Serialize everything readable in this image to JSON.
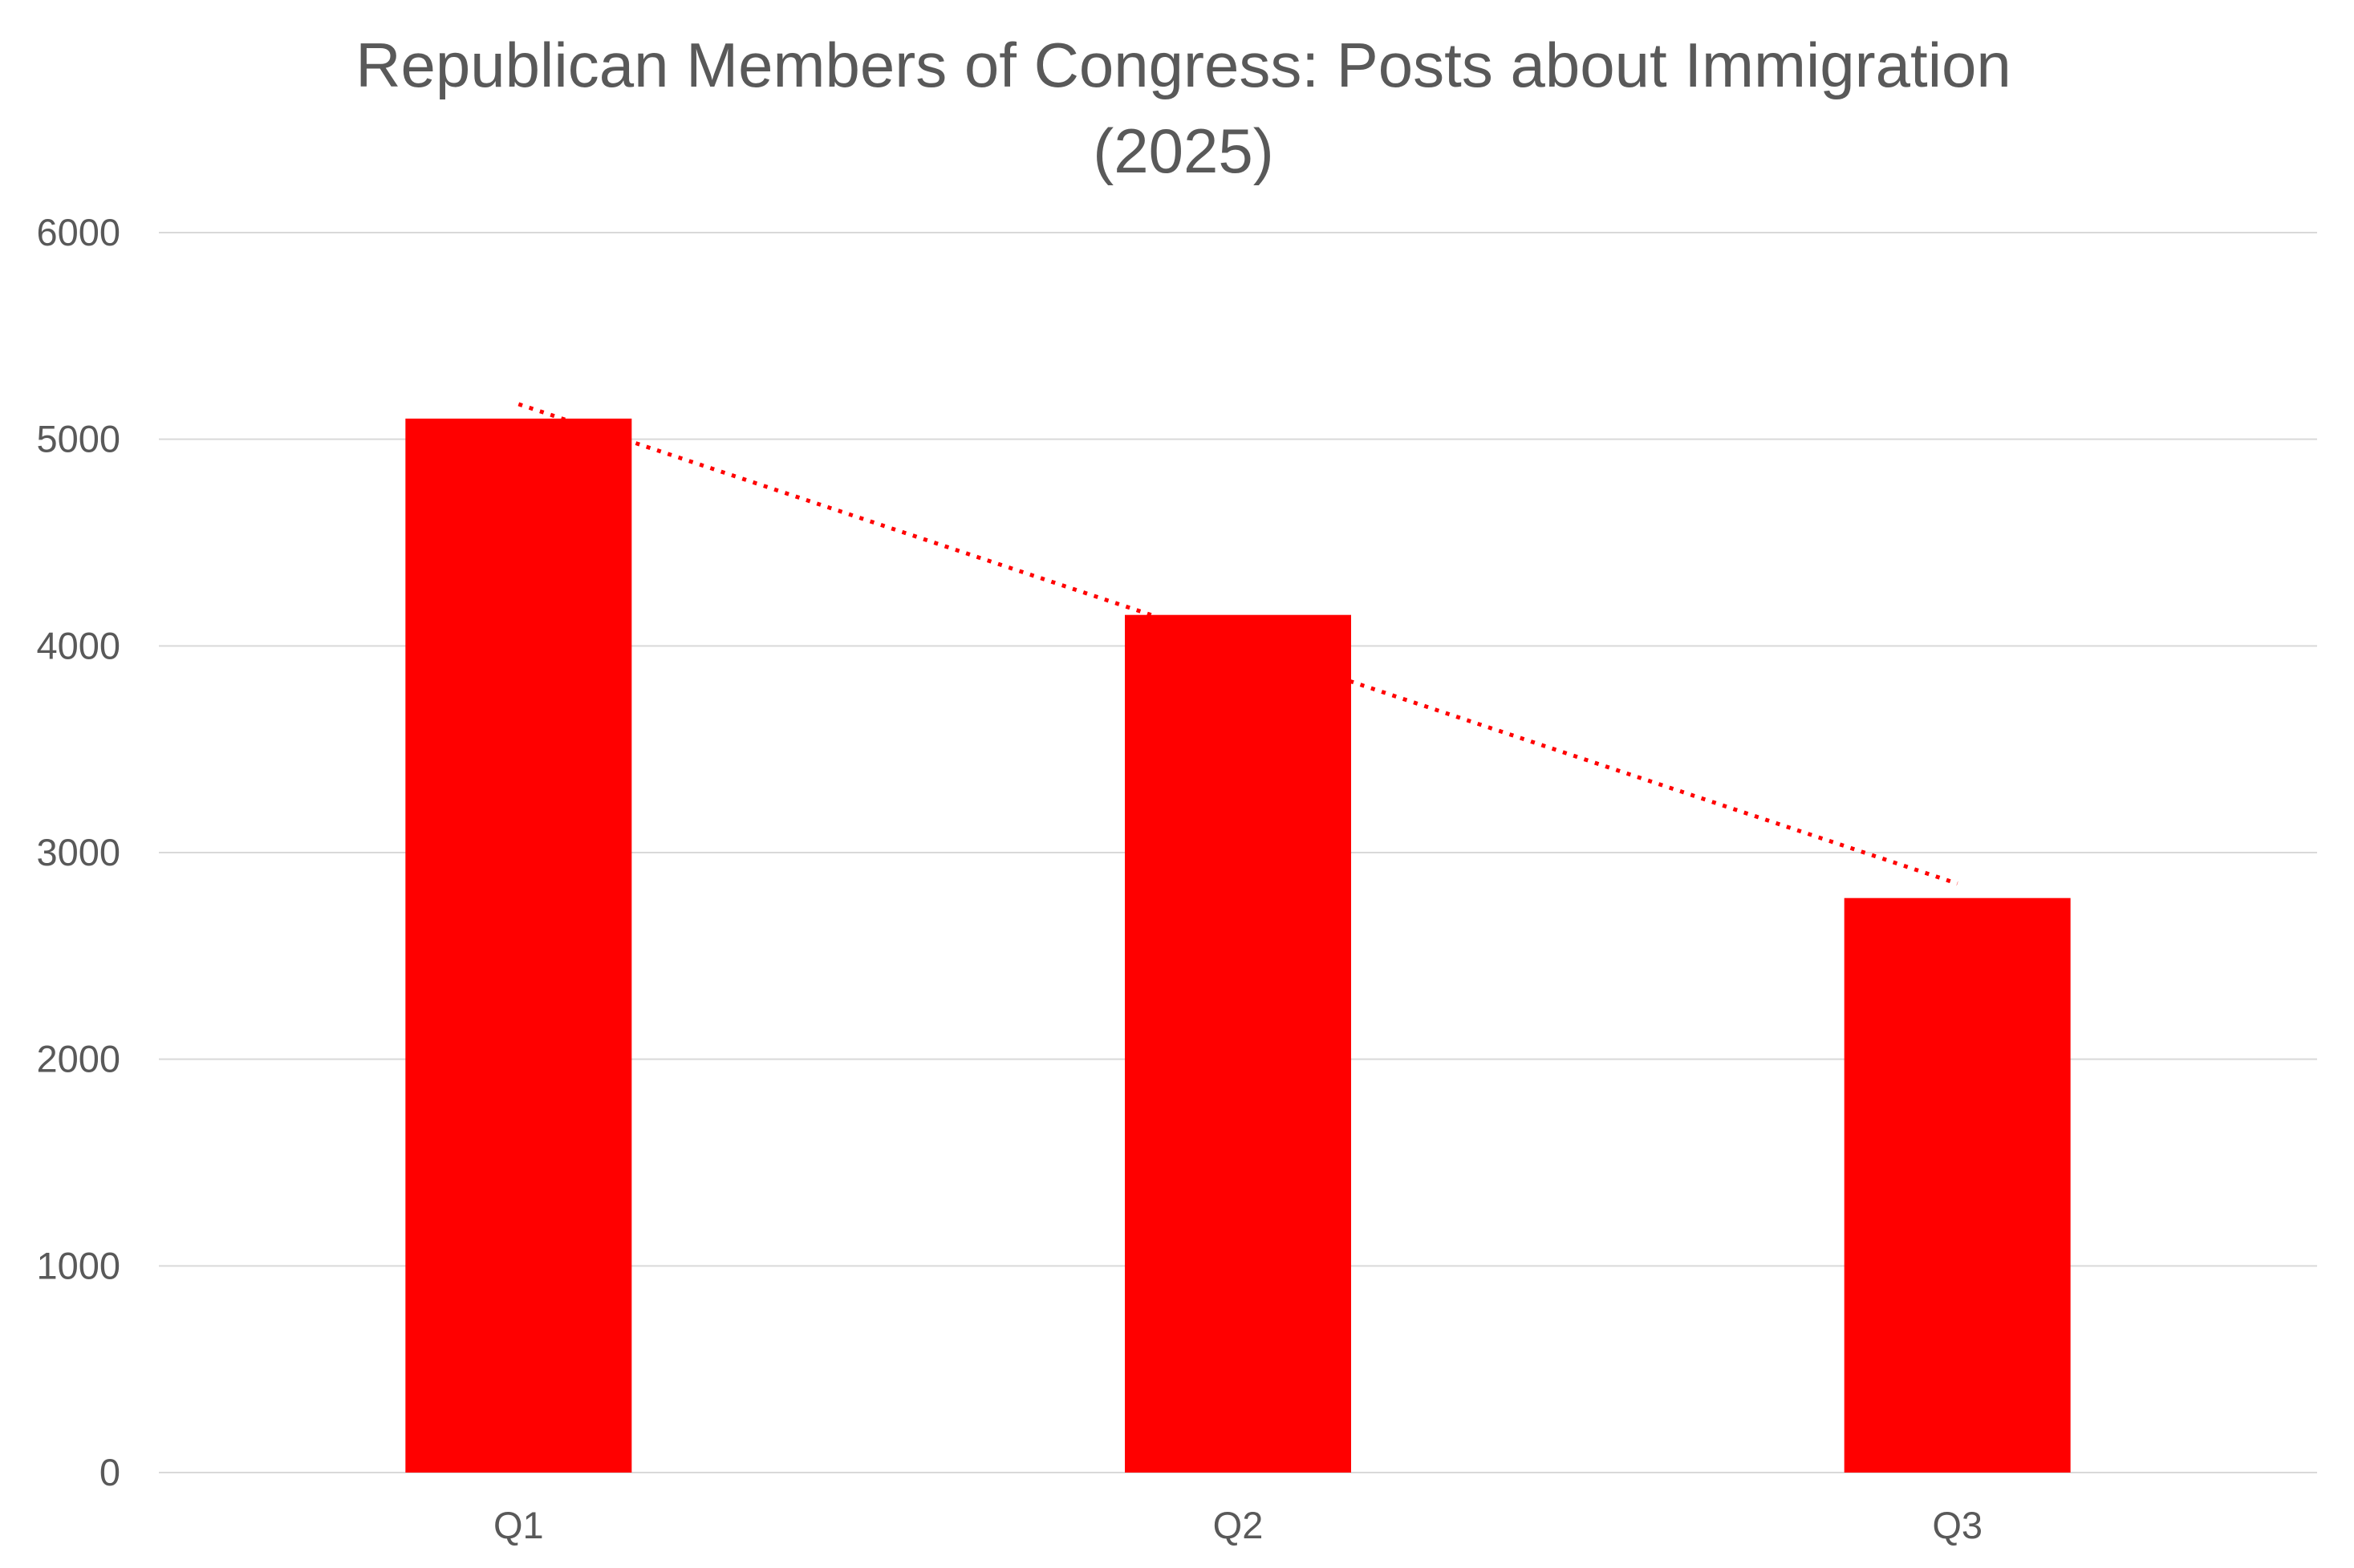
{
  "chart_data": {
    "type": "bar",
    "title": "Republican Members of Congress: Posts about Immigration",
    "subtitle": "(2025)",
    "xlabel": "",
    "ylabel": "",
    "categories": [
      "Q1",
      "Q2",
      "Q3"
    ],
    "series": [
      {
        "values": [
          5100,
          4150,
          2780
        ],
        "color": "#ff0000"
      }
    ],
    "ylim": [
      0,
      6000
    ],
    "yticks": [
      "0",
      "1000",
      "2000",
      "3000",
      "4000",
      "5000",
      "6000"
    ],
    "grid": true,
    "legend": "none",
    "trendline": {
      "type": "linear",
      "style": "dotted",
      "color": "#ff0000"
    }
  }
}
